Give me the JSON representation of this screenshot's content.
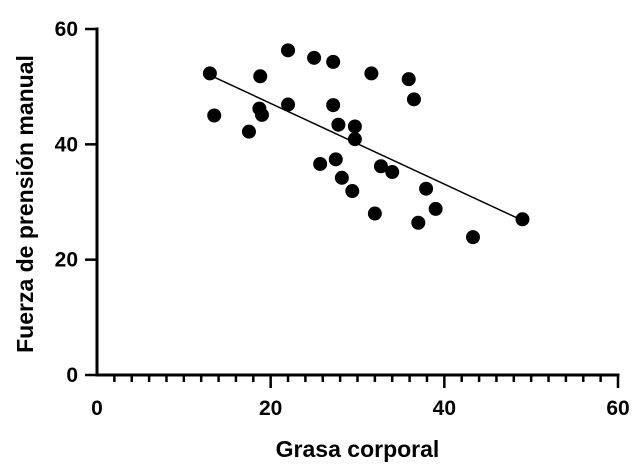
{
  "chart_data": {
    "type": "scatter",
    "title": "",
    "xlabel": "Grasa corporal",
    "ylabel": "Fuerza de prensión manual",
    "xlim": [
      0,
      60
    ],
    "ylim": [
      0,
      60
    ],
    "x_ticks": [
      0,
      20,
      40,
      60
    ],
    "x_tick_labels": [
      "0",
      "20",
      "40",
      "60"
    ],
    "x_minor_step": 2,
    "y_ticks": [
      0,
      20,
      40,
      60
    ],
    "y_tick_labels": [
      "0",
      "20",
      "40",
      "60"
    ],
    "grid": false,
    "legend": "none",
    "points": [
      {
        "x": 13.0,
        "y": 52.3
      },
      {
        "x": 13.5,
        "y": 45.0
      },
      {
        "x": 17.5,
        "y": 42.2
      },
      {
        "x": 18.8,
        "y": 51.8
      },
      {
        "x": 18.7,
        "y": 46.2
      },
      {
        "x": 19.0,
        "y": 45.1
      },
      {
        "x": 22.0,
        "y": 56.3
      },
      {
        "x": 22.0,
        "y": 46.9
      },
      {
        "x": 25.0,
        "y": 55.0
      },
      {
        "x": 25.7,
        "y": 36.6
      },
      {
        "x": 27.2,
        "y": 54.3
      },
      {
        "x": 27.2,
        "y": 46.8
      },
      {
        "x": 27.5,
        "y": 37.4
      },
      {
        "x": 27.8,
        "y": 43.4
      },
      {
        "x": 28.2,
        "y": 34.2
      },
      {
        "x": 29.4,
        "y": 31.9
      },
      {
        "x": 29.7,
        "y": 43.1
      },
      {
        "x": 29.7,
        "y": 40.9
      },
      {
        "x": 31.6,
        "y": 52.3
      },
      {
        "x": 32.0,
        "y": 28.0
      },
      {
        "x": 32.7,
        "y": 36.2
      },
      {
        "x": 34.0,
        "y": 35.2
      },
      {
        "x": 35.9,
        "y": 51.3
      },
      {
        "x": 36.5,
        "y": 47.8
      },
      {
        "x": 37.0,
        "y": 26.4
      },
      {
        "x": 37.9,
        "y": 32.3
      },
      {
        "x": 39.0,
        "y": 28.8
      },
      {
        "x": 43.3,
        "y": 23.9
      },
      {
        "x": 49.0,
        "y": 27.0
      }
    ],
    "trend_line": {
      "x": [
        13.0,
        49.0
      ],
      "y": [
        52.0,
        26.8
      ]
    },
    "colors": {
      "points": "#000000",
      "line": "#000000",
      "axes": "#000000"
    }
  }
}
